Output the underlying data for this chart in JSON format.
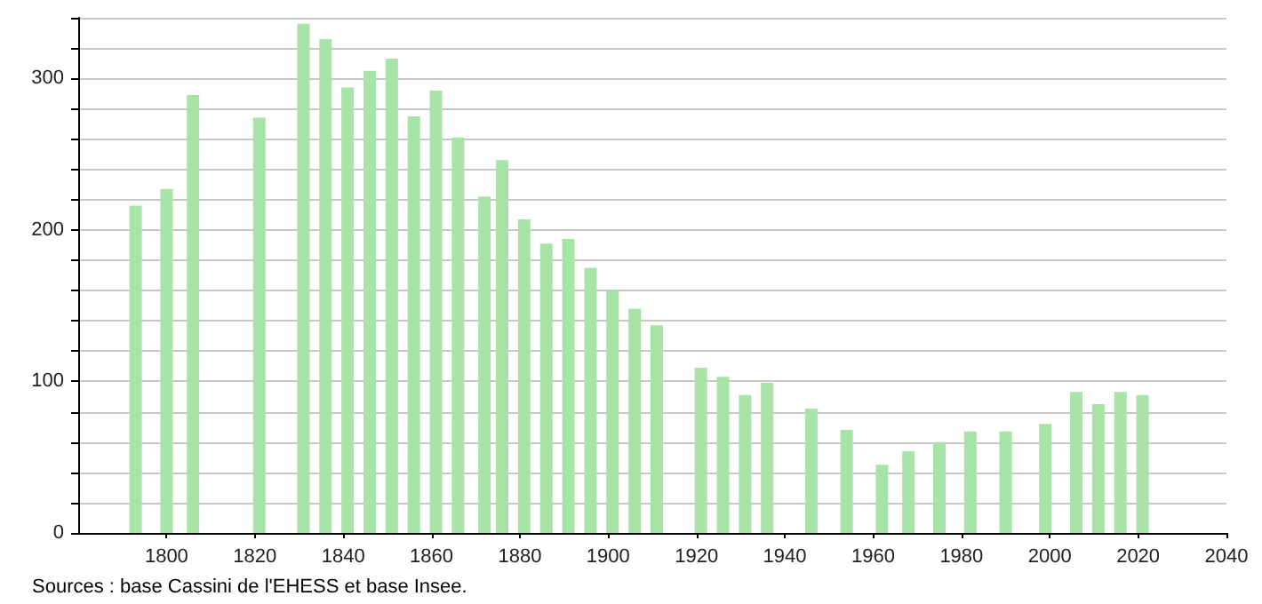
{
  "chart_data": {
    "type": "bar",
    "color": "#a8e4a8",
    "x": [
      1793,
      1800,
      1806,
      1821,
      1831,
      1836,
      1841,
      1846,
      1851,
      1856,
      1861,
      1866,
      1872,
      1876,
      1881,
      1886,
      1891,
      1896,
      1901,
      1906,
      1911,
      1921,
      1926,
      1931,
      1936,
      1946,
      1954,
      1962,
      1968,
      1975,
      1982,
      1990,
      1999,
      2006,
      2011,
      2016,
      2021
    ],
    "values": [
      216,
      227,
      289,
      274,
      336,
      326,
      294,
      305,
      313,
      275,
      292,
      261,
      222,
      246,
      207,
      191,
      194,
      175,
      160,
      148,
      137,
      109,
      103,
      91,
      99,
      82,
      68,
      45,
      54,
      60,
      67,
      67,
      72,
      93,
      85,
      93,
      91
    ],
    "xlim": [
      1780,
      2040
    ],
    "xticks": [
      1800,
      1820,
      1840,
      1860,
      1880,
      1900,
      1920,
      1940,
      1960,
      1980,
      2000,
      2020,
      2040
    ],
    "ylim": [
      0,
      340
    ],
    "yticks": [
      0,
      {
        "value": 20,
        "label": null
      },
      {
        "value": 40,
        "label": null
      },
      {
        "value": 60,
        "label": null
      },
      {
        "value": 80,
        "label": null
      },
      100,
      {
        "value": 120,
        "label": null
      },
      {
        "value": 140,
        "label": null
      },
      {
        "value": 160,
        "label": null
      },
      {
        "value": 180,
        "label": null
      },
      200,
      {
        "value": 220,
        "label": null
      },
      {
        "value": 240,
        "label": null
      },
      {
        "value": 260,
        "label": null
      },
      {
        "value": 280,
        "label": null
      },
      300,
      {
        "value": 320,
        "label": null
      },
      {
        "value": 340,
        "label": null
      }
    ],
    "grid": "y",
    "annotations": [
      "Sources : base Cassini de l'EHESS et base Insee."
    ]
  }
}
